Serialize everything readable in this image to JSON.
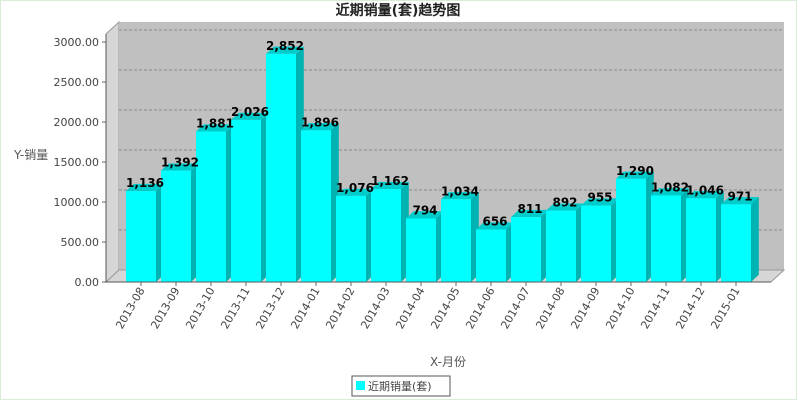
{
  "chart_data": {
    "type": "bar",
    "title": "近期销量(套)趋势图",
    "xlabel": "X-月份",
    "ylabel": "Y-销量",
    "ylim": [
      0,
      3000
    ],
    "yticks": [
      "0.00",
      "500.00",
      "1000.00",
      "1500.00",
      "2000.00",
      "2500.00",
      "3000.00"
    ],
    "categories": [
      "2013-08",
      "2013-09",
      "2013-10",
      "2013-11",
      "2013-12",
      "2014-01",
      "2014-02",
      "2014-03",
      "2014-04",
      "2014-05",
      "2014-06",
      "2014-07",
      "2014-08",
      "2014-09",
      "2014-10",
      "2014-11",
      "2014-12",
      "2015-01"
    ],
    "series": [
      {
        "name": "近期销量(套)",
        "values": [
          1136,
          1392,
          1881,
          2026,
          2852,
          1896,
          1076,
          1162,
          794,
          1034,
          656,
          811,
          892,
          955,
          1290,
          1082,
          1046,
          971
        ],
        "labels": [
          "1,136",
          "1,392",
          "1,881",
          "2,026",
          "2,852",
          "1,896",
          "1,076",
          "1,162",
          "794",
          "1,034",
          "656",
          "811",
          "892",
          "955",
          "1,290",
          "1,082",
          "1,046",
          "971"
        ]
      }
    ],
    "grid": true,
    "legend_position": "bottom",
    "colors": {
      "bar_front": "#00ffff",
      "bar_side": "#00b3b3",
      "bar_top": "#00cccc",
      "plot_bg": "#c0c0c0",
      "plot_wall": "#d6d6d6",
      "gridline": "#8a8a8a"
    }
  }
}
